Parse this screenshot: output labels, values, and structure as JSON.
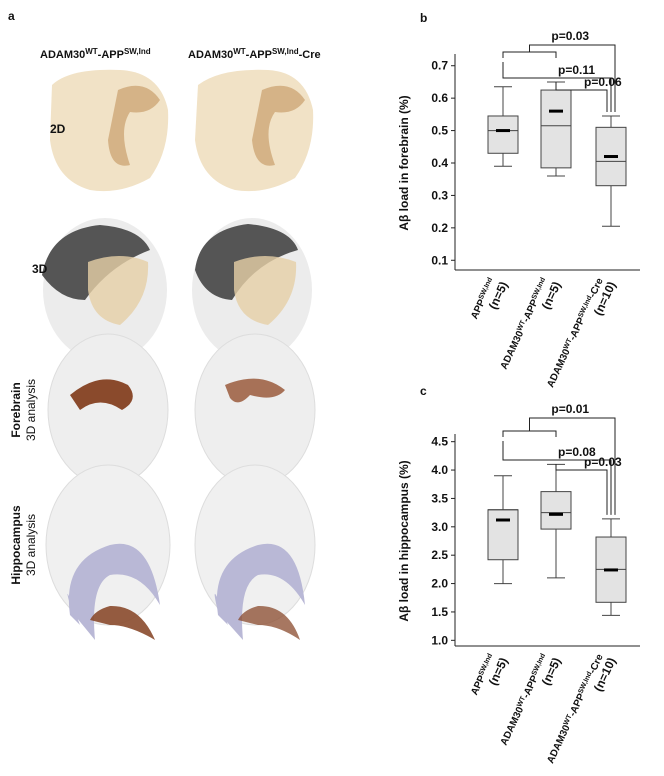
{
  "panel_a": {
    "label": "a",
    "columns": [
      [
        "ADAM30",
        "WT",
        "-APP",
        "SW,Ind"
      ],
      [
        "ADAM30",
        "WT",
        "-APP",
        "SW,Ind",
        "-Cre"
      ]
    ],
    "rows": [
      [
        "2D"
      ],
      [
        "3D"
      ],
      [
        "Forebrain",
        "3D analysis"
      ],
      [
        "Hippocampus",
        "3D analysis"
      ]
    ]
  },
  "chart_data": [
    {
      "type": "box",
      "panel": "b",
      "y_label": "Aβ load in forebrain (%)",
      "categories": [
        [
          "APP",
          "SW,Ind"
        ],
        [
          "ADAM30",
          "WT",
          "-APP",
          "SW,Ind"
        ],
        [
          "ADAM30",
          "WT",
          "-APP",
          "SW,Ind",
          "-Cre"
        ]
      ],
      "n_labels": [
        "(n=5)",
        "(n=5)",
        "(n=10)"
      ],
      "boxes": [
        {
          "whisker_low": 0.39,
          "q1": 0.43,
          "median": 0.5,
          "q3": 0.545,
          "whisker_high": 0.635,
          "mean": 0.5
        },
        {
          "whisker_low": 0.36,
          "q1": 0.385,
          "median": 0.515,
          "q3": 0.625,
          "whisker_high": 0.65,
          "mean": 0.56
        },
        {
          "whisker_low": 0.205,
          "q1": 0.33,
          "median": 0.405,
          "q3": 0.51,
          "whisker_high": 0.545,
          "mean": 0.42
        }
      ],
      "color": "#e3e3e3",
      "ylim": [
        0.07,
        0.73
      ],
      "yticks": [
        0.1,
        0.2,
        0.3,
        0.4,
        0.5,
        0.6,
        0.7
      ],
      "annotations": [
        "p=0.03",
        "p=0.11",
        "p=0.06"
      ]
    },
    {
      "type": "box",
      "panel": "c",
      "y_label": "Aβ load in hippocampus (%)",
      "categories": [
        [
          "APP",
          "SW,Ind"
        ],
        [
          "ADAM30",
          "WT",
          "-APP",
          "SW,Ind"
        ],
        [
          "ADAM30",
          "WT",
          "-APP",
          "SW,Ind",
          "-Cre"
        ]
      ],
      "n_labels": [
        "(n=5)",
        "(n=5)",
        "(n=10)"
      ],
      "boxes": [
        {
          "whisker_low": 2.0,
          "q1": 2.42,
          "median": 3.3,
          "q3": 3.3,
          "whisker_high": 3.9,
          "mean": 3.12
        },
        {
          "whisker_low": 2.1,
          "q1": 2.96,
          "median": 3.25,
          "q3": 3.62,
          "whisker_high": 4.1,
          "mean": 3.22
        },
        {
          "whisker_low": 1.44,
          "q1": 1.67,
          "median": 2.25,
          "q3": 2.82,
          "whisker_high": 3.14,
          "mean": 2.24
        }
      ],
      "color": "#e3e3e3",
      "ylim": [
        0.9,
        4.6
      ],
      "yticks": [
        {
          "value": 1,
          "label": "1.0"
        },
        1.5,
        {
          "value": 2,
          "label": "2.0"
        },
        2.5,
        {
          "value": 3,
          "label": "3.0"
        },
        3.5,
        {
          "value": 4,
          "label": "4.0"
        },
        4.5
      ],
      "annotations": [
        "p=0.01",
        "p=0.08",
        "p=0.03"
      ]
    }
  ]
}
